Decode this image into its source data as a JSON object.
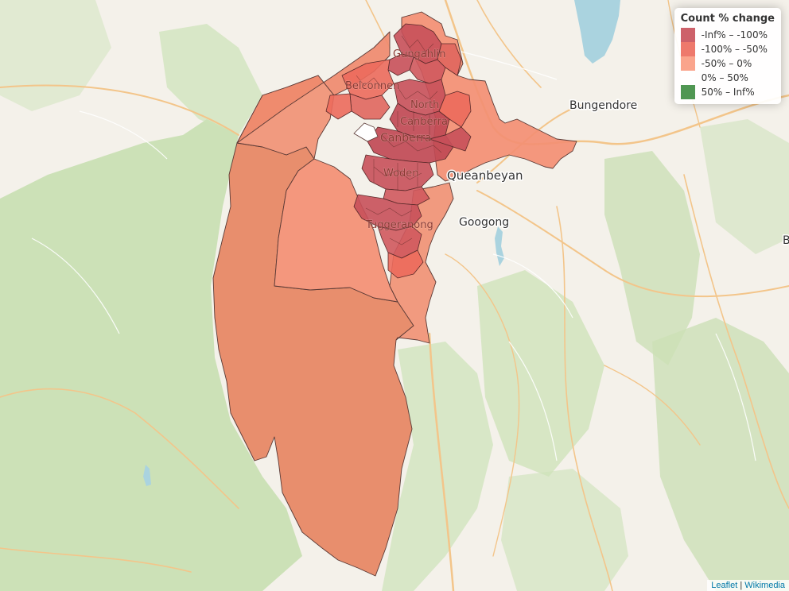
{
  "legend": {
    "title": "Count % change",
    "items": [
      {
        "label": "-Inf% – -100%",
        "color": "#c8505a"
      },
      {
        "label": "-100% – -50%",
        "color": "#ec6a5c"
      },
      {
        "label": "-50% – 0%",
        "color": "#fa9a80"
      },
      {
        "label": "0% – 50%",
        "color": "#ffffff"
      },
      {
        "label": "50% – Inf%",
        "color": "#3d8c40"
      }
    ]
  },
  "places": {
    "bungendore": "Bungendore",
    "queanbeyan": "Queanbeyan",
    "googong": "Googong",
    "gungahlin": "Gungahlin",
    "belconnen": "Belconnen",
    "north_canberra": "North",
    "north_canberra_2": "Canberra",
    "canberra": "Canberra",
    "woden": "Woden",
    "tuggeranong": "Tuggeranong",
    "edge_b": "B"
  },
  "attribution": {
    "leaflet": "Leaflet",
    "separator": " | ",
    "wikimedia": "Wikimedia"
  },
  "colors": {
    "land": "#f4f1ea",
    "forest": "#c8dfb2",
    "water": "#aad3df",
    "road": "#f3c58a",
    "region_base": "#ec7a5c",
    "region_south": "#e68562",
    "region_mid": "#fa9a80",
    "region_dark": "#c8505a",
    "region_med": "#e0665e"
  }
}
